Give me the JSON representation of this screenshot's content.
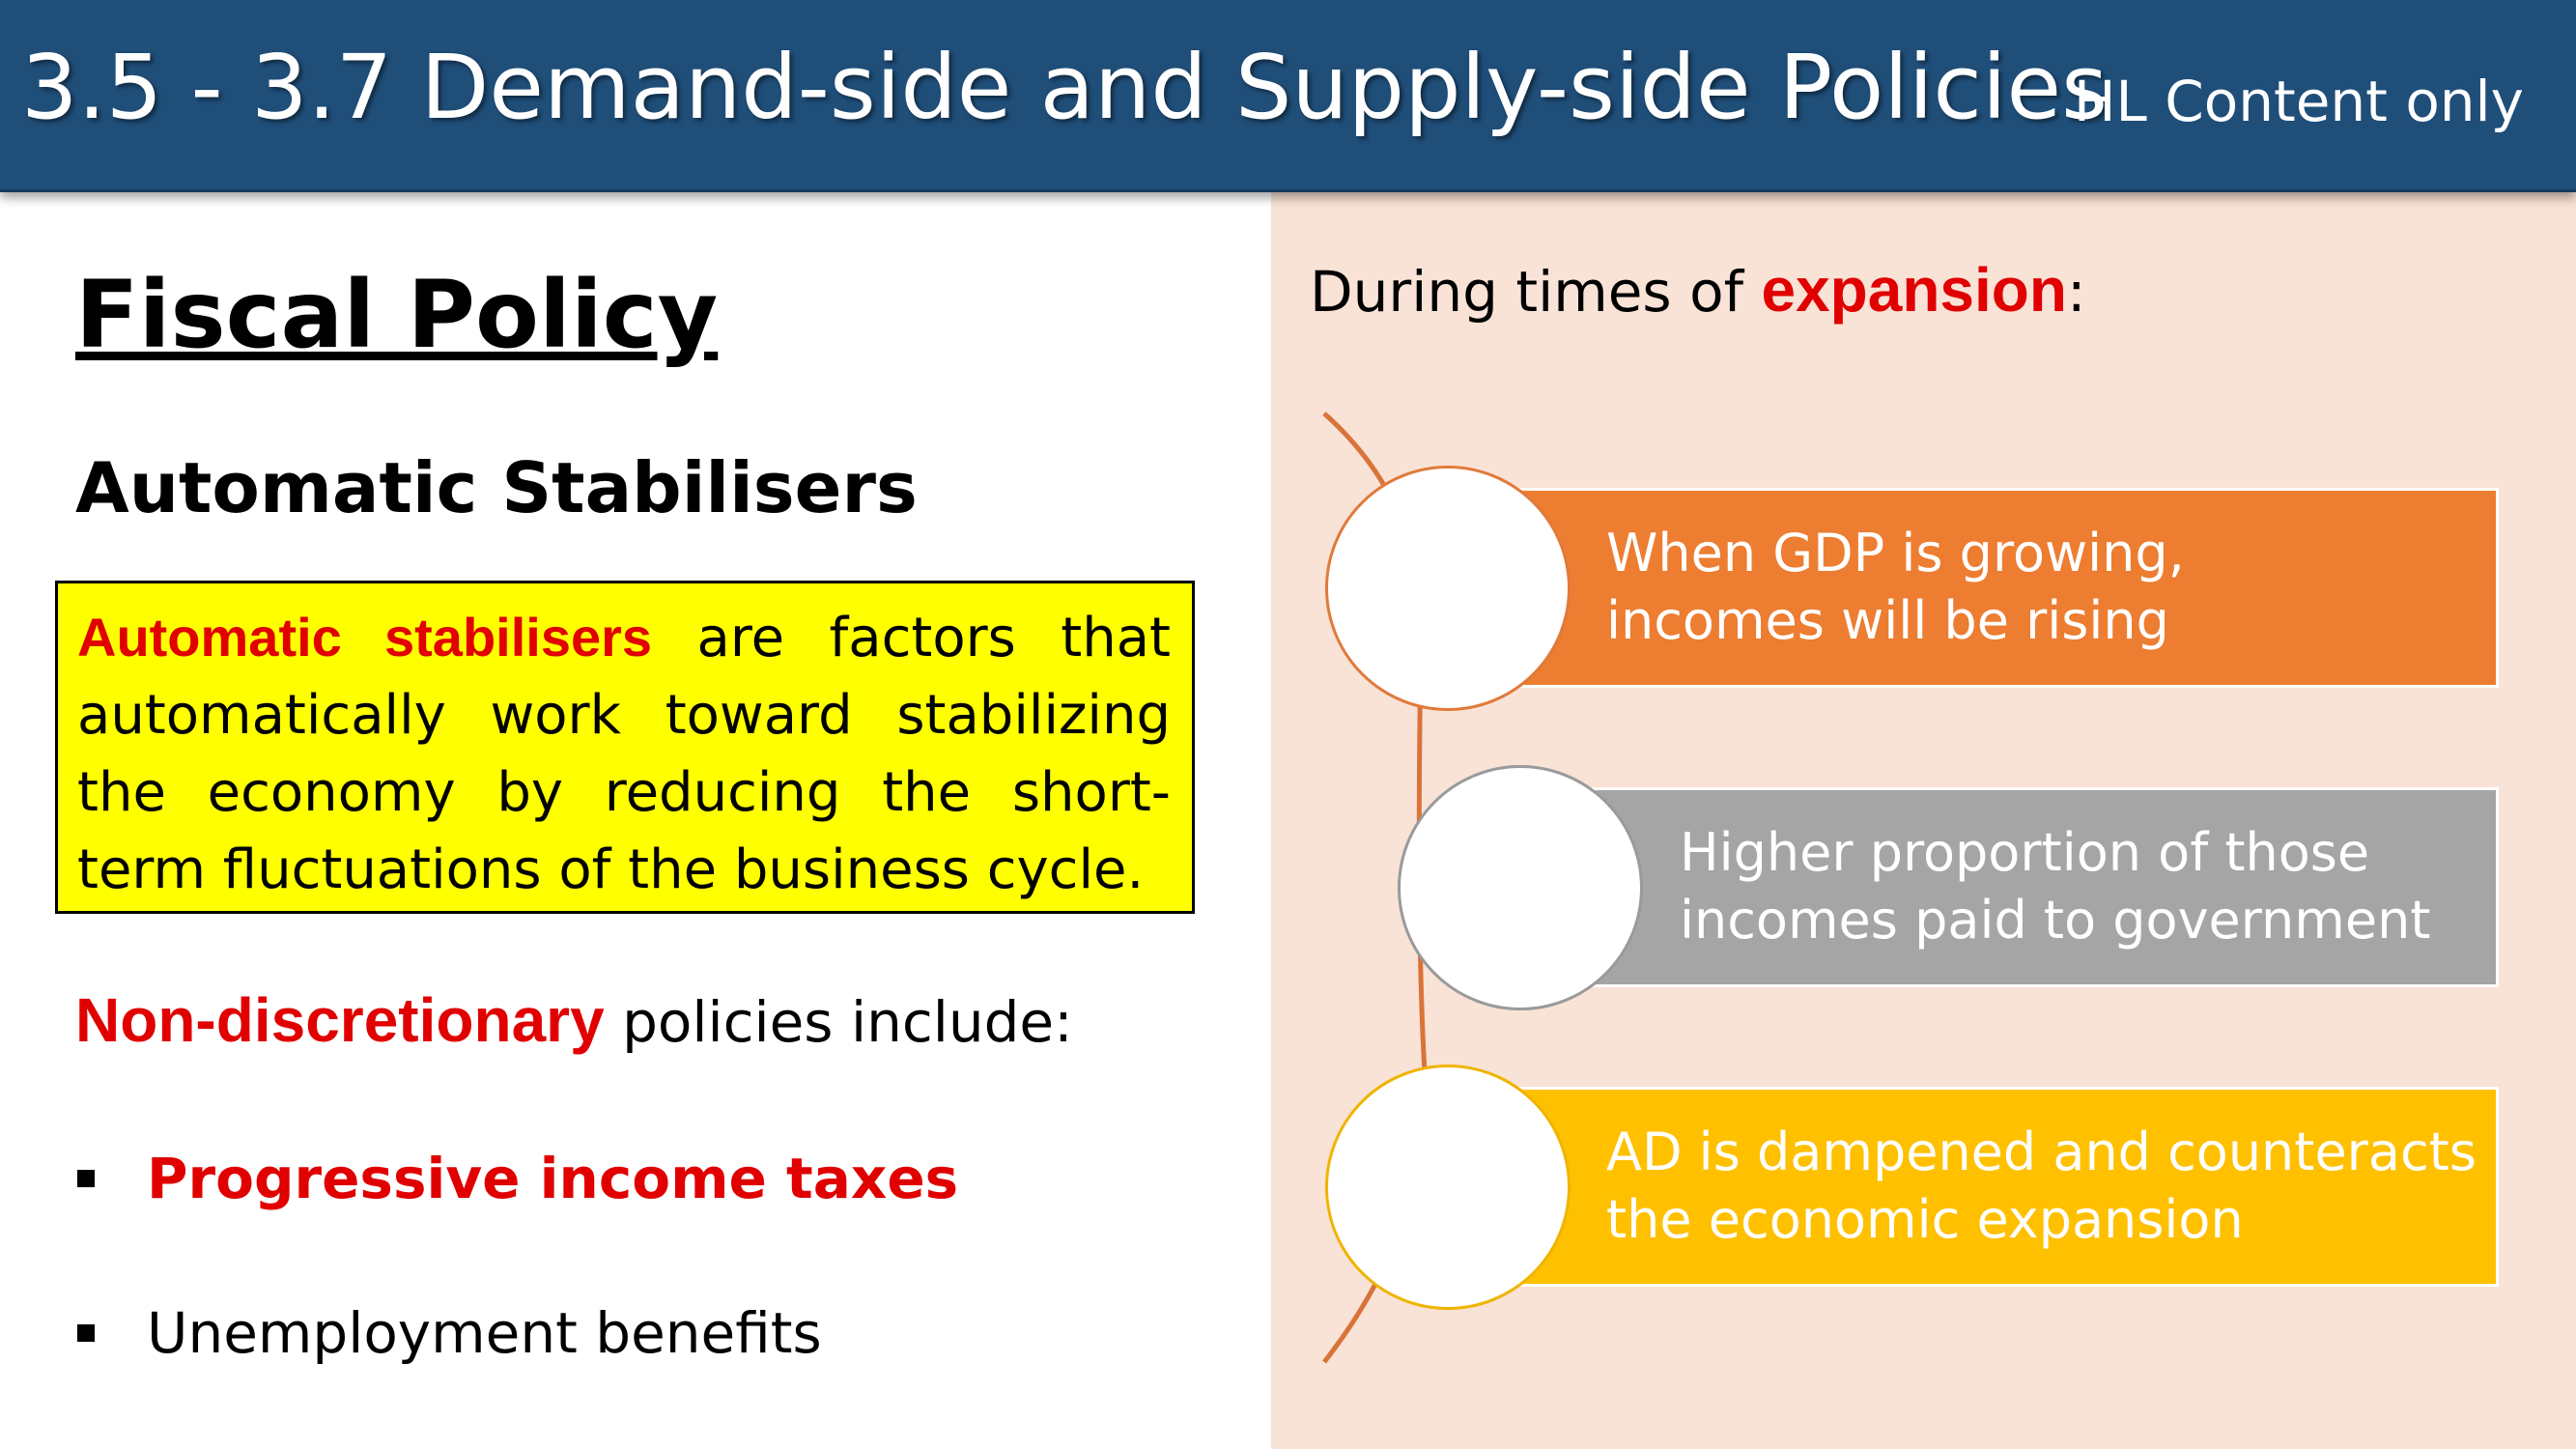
{
  "header": {
    "title": "3.5 - 3.7 Demand-side and Supply-side Policies",
    "tag": "HL Content only"
  },
  "left": {
    "section_title": "Fiscal Policy",
    "subtitle": "Automatic Stabilisers",
    "definition": {
      "term": "Automatic stabilisers",
      "text": " are factors that automatically work toward stabilizing the economy by reducing the short-term fluctuations  of the business cycle."
    },
    "non_discretionary": {
      "highlight": "Non-discretionary",
      "rest": " policies include:"
    },
    "bullets": [
      {
        "text": "Progressive income taxes",
        "highlight": true
      },
      {
        "text": "Unemployment benefits",
        "highlight": false
      }
    ]
  },
  "right": {
    "intro_prefix": "During times of ",
    "intro_highlight": "expansion",
    "intro_suffix": ":",
    "steps": [
      {
        "line1": "When GDP is growing,",
        "line2": "incomes will be rising",
        "color": "#ed7d31",
        "circle_border": "#e07a3a"
      },
      {
        "line1": "Higher proportion of those",
        "line2": "incomes paid to government",
        "color": "#a5a5a5",
        "circle_border": "#9a9a9a"
      },
      {
        "line1": "AD is dampened and counteracts",
        "line2": "the economic expansion",
        "color": "#ffc000",
        "circle_border": "#f0b400"
      }
    ],
    "connector_color": "#d8743a"
  }
}
